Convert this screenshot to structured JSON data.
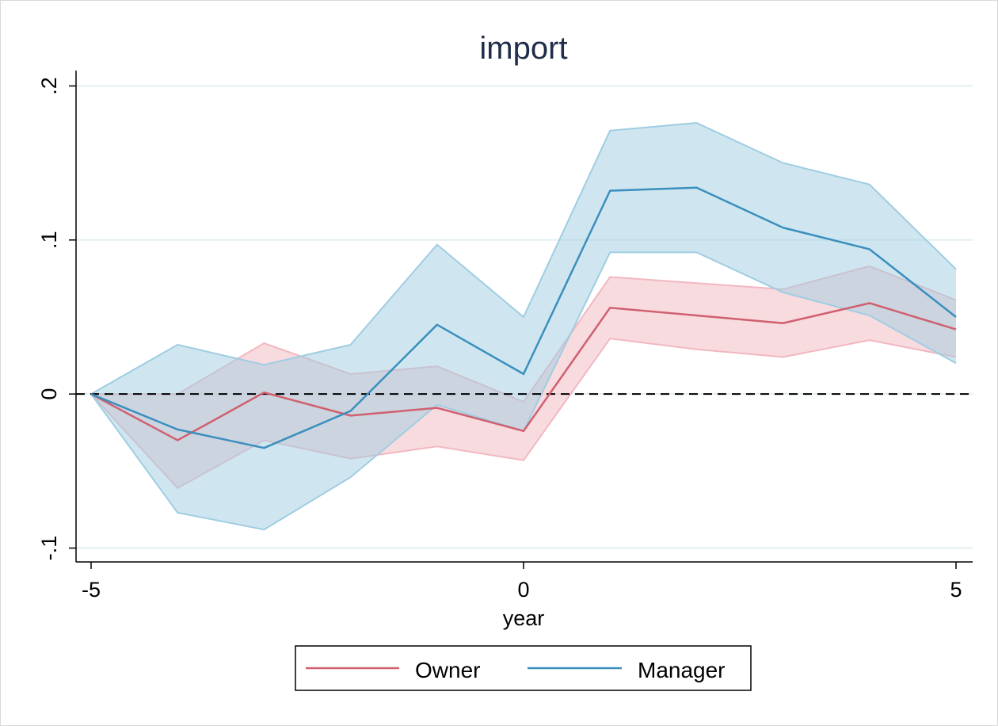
{
  "chart_data": {
    "type": "line",
    "title": "import",
    "xlabel": "year",
    "ylabel": "",
    "x": [
      -5,
      -4,
      -3,
      -2,
      -1,
      0,
      1,
      2,
      3,
      4,
      5
    ],
    "xticks": [
      {
        "value": -5,
        "label": "-5"
      },
      {
        "value": 0,
        "label": "0"
      },
      {
        "value": 5,
        "label": "5"
      }
    ],
    "yticks": [
      {
        "value": -0.1,
        "label": "-.1"
      },
      {
        "value": 0,
        "label": "0"
      },
      {
        "value": 0.1,
        "label": ".1"
      },
      {
        "value": 0.2,
        "label": ".2"
      }
    ],
    "xlim": [
      -5.2,
      5.2
    ],
    "ylim": [
      -0.109,
      0.21
    ],
    "grid": true,
    "reference_line": {
      "y": 0,
      "style": "dashed",
      "color": "#000000"
    },
    "legend_position": "bottom",
    "series": [
      {
        "name": "Owner",
        "color": "#d0606f",
        "band_color": "#f2b7c0",
        "values": [
          0,
          -0.03,
          0.001,
          -0.014,
          -0.009,
          -0.024,
          0.056,
          0.051,
          0.046,
          0.059,
          0.042
        ],
        "lower": [
          0,
          -0.061,
          -0.03,
          -0.042,
          -0.034,
          -0.043,
          0.036,
          0.029,
          0.024,
          0.035,
          0.024
        ],
        "upper": [
          0,
          0.0,
          0.033,
          0.013,
          0.018,
          -0.005,
          0.076,
          0.072,
          0.068,
          0.083,
          0.061
        ]
      },
      {
        "name": "Manager",
        "color": "#3a8fbd",
        "band_color": "#9fcde2",
        "values": [
          0,
          -0.023,
          -0.035,
          -0.011,
          0.045,
          0.013,
          0.132,
          0.134,
          0.108,
          0.094,
          0.05
        ],
        "lower": [
          0,
          -0.077,
          -0.088,
          -0.054,
          -0.007,
          -0.024,
          0.092,
          0.092,
          0.066,
          0.051,
          0.02
        ],
        "upper": [
          0,
          0.032,
          0.019,
          0.032,
          0.097,
          0.05,
          0.171,
          0.176,
          0.15,
          0.136,
          0.081
        ]
      }
    ]
  }
}
